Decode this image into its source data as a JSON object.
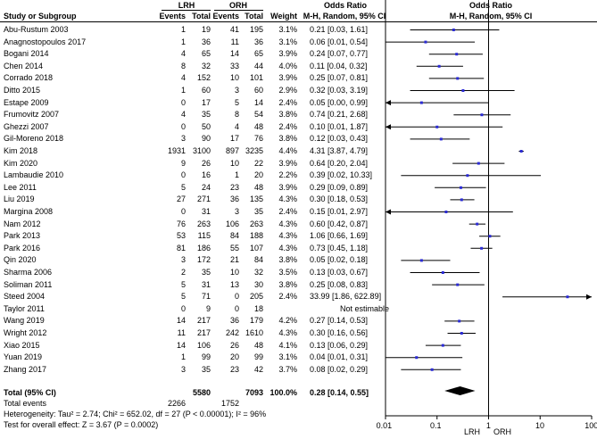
{
  "headers": {
    "group_lrh": "LRH",
    "group_orh": "ORH",
    "study": "Study or Subgroup",
    "events": "Events",
    "total": "Total",
    "weight": "Weight",
    "or_title": "Odds Ratio",
    "or_method": "M-H, Random, 95% CI"
  },
  "studies": [
    {
      "name": "Abu-Rustum 2003",
      "lrh_events": "1",
      "lrh_total": "19",
      "orh_events": "41",
      "orh_total": "195",
      "weight": "3.1%",
      "ci": "0.21 [0.03, 1.61]"
    },
    {
      "name": "Anagnostopoulos 2017",
      "lrh_events": "1",
      "lrh_total": "36",
      "orh_events": "11",
      "orh_total": "36",
      "weight": "3.1%",
      "ci": "0.06 [0.01, 0.54]"
    },
    {
      "name": "Bogani 2014",
      "lrh_events": "4",
      "lrh_total": "65",
      "orh_events": "14",
      "orh_total": "65",
      "weight": "3.9%",
      "ci": "0.24 [0.07, 0.77]"
    },
    {
      "name": "Chen 2014",
      "lrh_events": "8",
      "lrh_total": "32",
      "orh_events": "33",
      "orh_total": "44",
      "weight": "4.0%",
      "ci": "0.11 [0.04, 0.32]"
    },
    {
      "name": "Corrado 2018",
      "lrh_events": "4",
      "lrh_total": "152",
      "orh_events": "10",
      "orh_total": "101",
      "weight": "3.9%",
      "ci": "0.25 [0.07, 0.81]"
    },
    {
      "name": "Ditto 2015",
      "lrh_events": "1",
      "lrh_total": "60",
      "orh_events": "3",
      "orh_total": "60",
      "weight": "2.9%",
      "ci": "0.32 [0.03, 3.19]"
    },
    {
      "name": "Estape 2009",
      "lrh_events": "0",
      "lrh_total": "17",
      "orh_events": "5",
      "orh_total": "14",
      "weight": "2.4%",
      "ci": "0.05 [0.00, 0.99]"
    },
    {
      "name": "Frumovitz 2007",
      "lrh_events": "4",
      "lrh_total": "35",
      "orh_events": "8",
      "orh_total": "54",
      "weight": "3.8%",
      "ci": "0.74 [0.21, 2.68]"
    },
    {
      "name": "Ghezzi 2007",
      "lrh_events": "0",
      "lrh_total": "50",
      "orh_events": "4",
      "orh_total": "48",
      "weight": "2.4%",
      "ci": "0.10 [0.01, 1.87]"
    },
    {
      "name": "Gil-Moreno 2018",
      "lrh_events": "3",
      "lrh_total": "90",
      "orh_events": "17",
      "orh_total": "76",
      "weight": "3.8%",
      "ci": "0.12 [0.03, 0.43]"
    },
    {
      "name": "Kim 2018",
      "lrh_events": "1931",
      "lrh_total": "3100",
      "orh_events": "897",
      "orh_total": "3235",
      "weight": "4.4%",
      "ci": "4.31 [3.87, 4.79]"
    },
    {
      "name": "Kim 2020",
      "lrh_events": "9",
      "lrh_total": "26",
      "orh_events": "10",
      "orh_total": "22",
      "weight": "3.9%",
      "ci": "0.64 [0.20, 2.04]"
    },
    {
      "name": "Lambaudie 2010",
      "lrh_events": "0",
      "lrh_total": "16",
      "orh_events": "1",
      "orh_total": "20",
      "weight": "2.2%",
      "ci": "0.39 [0.02, 10.33]"
    },
    {
      "name": "Lee 2011",
      "lrh_events": "5",
      "lrh_total": "24",
      "orh_events": "23",
      "orh_total": "48",
      "weight": "3.9%",
      "ci": "0.29 [0.09, 0.89]"
    },
    {
      "name": "Liu 2019",
      "lrh_events": "27",
      "lrh_total": "271",
      "orh_events": "36",
      "orh_total": "135",
      "weight": "4.3%",
      "ci": "0.30 [0.18, 0.53]"
    },
    {
      "name": "Margina 2008",
      "lrh_events": "0",
      "lrh_total": "31",
      "orh_events": "3",
      "orh_total": "35",
      "weight": "2.4%",
      "ci": "0.15 [0.01, 2.97]"
    },
    {
      "name": "Nam 2012",
      "lrh_events": "76",
      "lrh_total": "263",
      "orh_events": "106",
      "orh_total": "263",
      "weight": "4.3%",
      "ci": "0.60 [0.42, 0.87]"
    },
    {
      "name": "Park 2013",
      "lrh_events": "53",
      "lrh_total": "115",
      "orh_events": "84",
      "orh_total": "188",
      "weight": "4.3%",
      "ci": "1.06 [0.66, 1.69]"
    },
    {
      "name": "Park 2016",
      "lrh_events": "81",
      "lrh_total": "186",
      "orh_events": "55",
      "orh_total": "107",
      "weight": "4.3%",
      "ci": "0.73 [0.45, 1.18]"
    },
    {
      "name": "Qin 2020",
      "lrh_events": "3",
      "lrh_total": "172",
      "orh_events": "21",
      "orh_total": "84",
      "weight": "3.8%",
      "ci": "0.05 [0.02, 0.18]"
    },
    {
      "name": "Sharma 2006",
      "lrh_events": "2",
      "lrh_total": "35",
      "orh_events": "10",
      "orh_total": "32",
      "weight": "3.5%",
      "ci": "0.13 [0.03, 0.67]"
    },
    {
      "name": "Soliman 2011",
      "lrh_events": "5",
      "lrh_total": "31",
      "orh_events": "13",
      "orh_total": "30",
      "weight": "3.8%",
      "ci": "0.25 [0.08, 0.83]"
    },
    {
      "name": "Steed 2004",
      "lrh_events": "5",
      "lrh_total": "71",
      "orh_events": "0",
      "orh_total": "205",
      "weight": "2.4%",
      "ci": "33.99 [1.86, 622.89]"
    },
    {
      "name": "Taylor 2011",
      "lrh_events": "0",
      "lrh_total": "9",
      "orh_events": "0",
      "orh_total": "18",
      "weight": "",
      "ci": "Not estimable"
    },
    {
      "name": "Wang 2019",
      "lrh_events": "14",
      "lrh_total": "217",
      "orh_events": "36",
      "orh_total": "179",
      "weight": "4.2%",
      "ci": "0.27 [0.14, 0.53]"
    },
    {
      "name": "Wright 2012",
      "lrh_events": "11",
      "lrh_total": "217",
      "orh_events": "242",
      "orh_total": "1610",
      "weight": "4.3%",
      "ci": "0.30 [0.16, 0.56]"
    },
    {
      "name": "Xiao 2015",
      "lrh_events": "14",
      "lrh_total": "106",
      "orh_events": "26",
      "orh_total": "48",
      "weight": "4.1%",
      "ci": "0.13 [0.06, 0.29]"
    },
    {
      "name": "Yuan 2019",
      "lrh_events": "1",
      "lrh_total": "99",
      "orh_events": "20",
      "orh_total": "99",
      "weight": "3.1%",
      "ci": "0.04 [0.01, 0.31]"
    },
    {
      "name": "Zhang 2017",
      "lrh_events": "3",
      "lrh_total": "35",
      "orh_events": "23",
      "orh_total": "42",
      "weight": "3.7%",
      "ci": "0.08 [0.02, 0.29]"
    }
  ],
  "total": {
    "label": "Total (95% CI)",
    "lrh_total": "5580",
    "orh_total": "7093",
    "weight": "100.0%",
    "ci": "0.28 [0.14, 0.55]"
  },
  "total_events": {
    "label": "Total events",
    "lrh": "2266",
    "orh": "1752"
  },
  "heterogeneity": "Heterogeneity: Tau² = 2.74; Chi² = 652.02, df = 27 (P < 0.00001); I² = 96%",
  "overall_effect": "Test for overall effect: Z = 3.67 (P = 0.0002)",
  "axis": {
    "ticks": [
      "0.01",
      "0.1",
      "1",
      "10",
      "100"
    ],
    "favours_left": "LRH",
    "favours_right": "ORH"
  },
  "colors": {
    "point": "#2b2bd6",
    "line": "#000000"
  },
  "chart_data": {
    "type": "forest",
    "scale": "log",
    "xlim": [
      0.01,
      100
    ],
    "reference_line": 1,
    "studies": [
      {
        "name": "Abu-Rustum 2003",
        "or": 0.21,
        "lo": 0.03,
        "hi": 1.61
      },
      {
        "name": "Anagnostopoulos 2017",
        "or": 0.06,
        "lo": 0.01,
        "hi": 0.54
      },
      {
        "name": "Bogani 2014",
        "or": 0.24,
        "lo": 0.07,
        "hi": 0.77
      },
      {
        "name": "Chen 2014",
        "or": 0.11,
        "lo": 0.04,
        "hi": 0.32
      },
      {
        "name": "Corrado 2018",
        "or": 0.25,
        "lo": 0.07,
        "hi": 0.81
      },
      {
        "name": "Ditto 2015",
        "or": 0.32,
        "lo": 0.03,
        "hi": 3.19
      },
      {
        "name": "Estape 2009",
        "or": 0.05,
        "lo": 0.004,
        "hi": 0.99
      },
      {
        "name": "Frumovitz 2007",
        "or": 0.74,
        "lo": 0.21,
        "hi": 2.68
      },
      {
        "name": "Ghezzi 2007",
        "or": 0.1,
        "lo": 0.005,
        "hi": 1.87
      },
      {
        "name": "Gil-Moreno 2018",
        "or": 0.12,
        "lo": 0.03,
        "hi": 0.43
      },
      {
        "name": "Kim 2018",
        "or": 4.31,
        "lo": 3.87,
        "hi": 4.79
      },
      {
        "name": "Kim 2020",
        "or": 0.64,
        "lo": 0.2,
        "hi": 2.04
      },
      {
        "name": "Lambaudie 2010",
        "or": 0.39,
        "lo": 0.02,
        "hi": 10.33
      },
      {
        "name": "Lee 2011",
        "or": 0.29,
        "lo": 0.09,
        "hi": 0.89
      },
      {
        "name": "Liu 2019",
        "or": 0.3,
        "lo": 0.18,
        "hi": 0.53
      },
      {
        "name": "Margina 2008",
        "or": 0.15,
        "lo": 0.008,
        "hi": 2.97
      },
      {
        "name": "Nam 2012",
        "or": 0.6,
        "lo": 0.42,
        "hi": 0.87
      },
      {
        "name": "Park 2013",
        "or": 1.06,
        "lo": 0.66,
        "hi": 1.69
      },
      {
        "name": "Park 2016",
        "or": 0.73,
        "lo": 0.45,
        "hi": 1.18
      },
      {
        "name": "Qin 2020",
        "or": 0.05,
        "lo": 0.02,
        "hi": 0.18
      },
      {
        "name": "Sharma 2006",
        "or": 0.13,
        "lo": 0.03,
        "hi": 0.67
      },
      {
        "name": "Soliman 2011",
        "or": 0.25,
        "lo": 0.08,
        "hi": 0.83
      },
      {
        "name": "Steed 2004",
        "or": 33.99,
        "lo": 1.86,
        "hi": 622.89
      },
      {
        "name": "Taylor 2011",
        "or": null,
        "lo": null,
        "hi": null
      },
      {
        "name": "Wang 2019",
        "or": 0.27,
        "lo": 0.14,
        "hi": 0.53
      },
      {
        "name": "Wright 2012",
        "or": 0.3,
        "lo": 0.16,
        "hi": 0.56
      },
      {
        "name": "Xiao 2015",
        "or": 0.13,
        "lo": 0.06,
        "hi": 0.29
      },
      {
        "name": "Yuan 2019",
        "or": 0.04,
        "lo": 0.01,
        "hi": 0.31
      },
      {
        "name": "Zhang 2017",
        "or": 0.08,
        "lo": 0.02,
        "hi": 0.29
      }
    ],
    "pooled": {
      "or": 0.28,
      "lo": 0.14,
      "hi": 0.55
    }
  }
}
